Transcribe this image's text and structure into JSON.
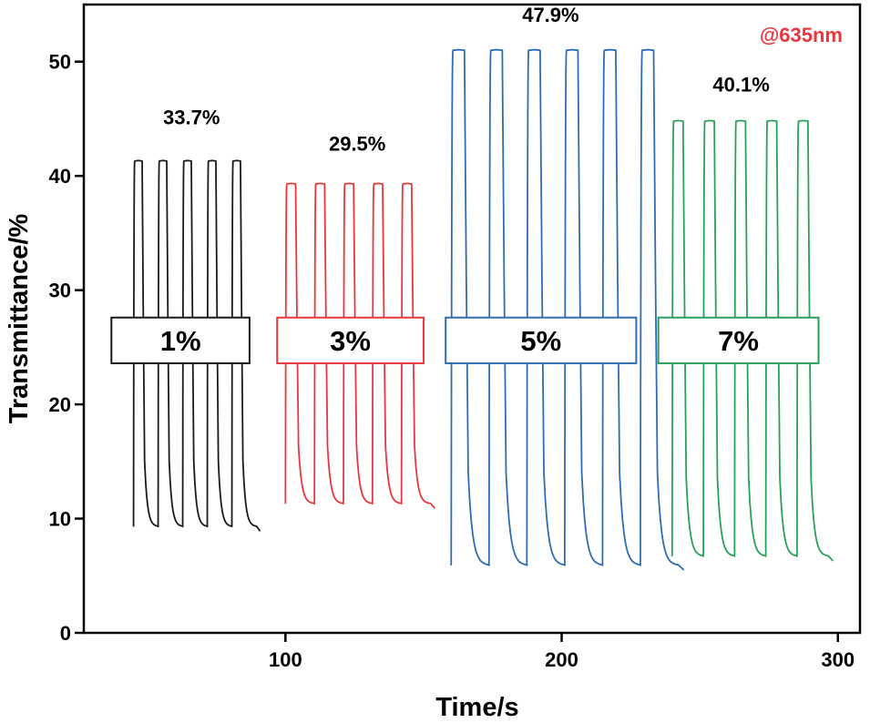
{
  "chart_data": {
    "type": "line",
    "title": "",
    "xlabel": "Time/s",
    "ylabel": "Transmittance/%",
    "xlim": [
      27,
      308
    ],
    "ylim": [
      0,
      55
    ],
    "xticks": [
      100,
      200,
      300
    ],
    "yticks": [
      0,
      10,
      20,
      30,
      40,
      50
    ],
    "wavelength_label": "@635nm",
    "wavelength_color": "#e8383d",
    "series": [
      {
        "name": "1%",
        "color": "#1a1a1a",
        "start": 45,
        "cycles": 5,
        "period": 8.9,
        "high": 41.3,
        "low": 9.3,
        "contrast_label": "33.7%",
        "label_pos": {
          "x": 66,
          "y": 44.5
        },
        "box_x": [
          37,
          87
        ]
      },
      {
        "name": "3%",
        "color": "#e8383d",
        "start": 100,
        "cycles": 5,
        "period": 10.5,
        "high": 39.3,
        "low": 11.3,
        "contrast_label": "29.5%",
        "label_pos": {
          "x": 126,
          "y": 42.2
        },
        "box_x": [
          97,
          150
        ]
      },
      {
        "name": "5%",
        "color": "#2e6db4",
        "start": 160,
        "cycles": 6,
        "period": 13.7,
        "high": 51.0,
        "low": 5.9,
        "contrast_label": "47.9%",
        "label_pos": {
          "x": 196,
          "y": 53.5
        },
        "box_x": [
          158,
          227
        ]
      },
      {
        "name": "7%",
        "color": "#2aa05a",
        "start": 240,
        "cycles": 5,
        "period": 11.3,
        "high": 44.8,
        "low": 6.7,
        "contrast_label": "40.1%",
        "label_pos": {
          "x": 265,
          "y": 47.4
        },
        "box_x": [
          235,
          293
        ]
      }
    ]
  }
}
